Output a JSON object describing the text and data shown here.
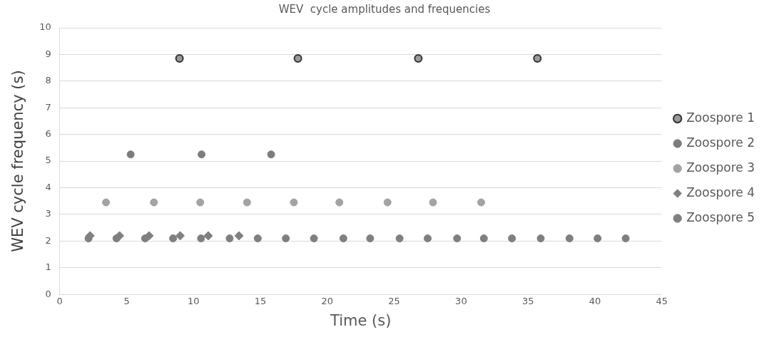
{
  "chart_data": {
    "type": "scatter",
    "title": "WEV  cycle amplitudes and frequencies",
    "xlabel": "Time (s)",
    "ylabel": "WEV cycle frequency (s)",
    "xlim": [
      0,
      45
    ],
    "xticks": [
      0,
      5,
      10,
      15,
      20,
      25,
      30,
      35,
      40,
      45
    ],
    "ylim": [
      0,
      10
    ],
    "yticks": [
      0,
      1,
      2,
      3,
      4,
      5,
      6,
      7,
      8,
      9,
      10
    ],
    "grid": "y",
    "legend": "right",
    "series": [
      {
        "name": "Zoospore 1",
        "color": "#9a9a9a",
        "marker": "circle",
        "x": [
          8.95,
          17.8,
          26.8,
          35.7
        ],
        "values": [
          8.85,
          8.85,
          8.85,
          8.85
        ]
      },
      {
        "name": "Zoospore 2",
        "color": "#7c7c7c",
        "marker": "circle",
        "x": [
          5.3,
          10.6,
          15.8
        ],
        "values": [
          5.25,
          5.25,
          5.25
        ]
      },
      {
        "name": "Zoospore 3",
        "color": "#a3a3a3",
        "marker": "circle",
        "x": [
          3.46,
          7.04,
          10.5,
          14.0,
          17.5,
          20.9,
          24.5,
          27.9,
          31.5
        ],
        "values": [
          3.45,
          3.45,
          3.45,
          3.45,
          3.45,
          3.45,
          3.45,
          3.45,
          3.45
        ]
      },
      {
        "name": "Zoospore 4",
        "color": "#808080",
        "marker": "diamond",
        "x": [
          2.27,
          4.47,
          6.68,
          9.0,
          11.1,
          13.4
        ],
        "values": [
          2.2,
          2.2,
          2.2,
          2.2,
          2.2,
          2.2
        ]
      },
      {
        "name": "Zoospore 5",
        "color": "#7f7f7f",
        "marker": "circle",
        "x": [
          2.15,
          4.24,
          6.38,
          8.47,
          10.56,
          12.7,
          14.8,
          16.9,
          19.0,
          21.2,
          23.2,
          25.4,
          27.5,
          29.7,
          31.7,
          33.8,
          35.95,
          38.1,
          40.2,
          42.3
        ],
        "values": [
          2.1,
          2.1,
          2.1,
          2.1,
          2.1,
          2.1,
          2.1,
          2.1,
          2.1,
          2.1,
          2.1,
          2.1,
          2.1,
          2.1,
          2.1,
          2.1,
          2.1,
          2.1,
          2.1,
          2.1
        ]
      }
    ]
  }
}
